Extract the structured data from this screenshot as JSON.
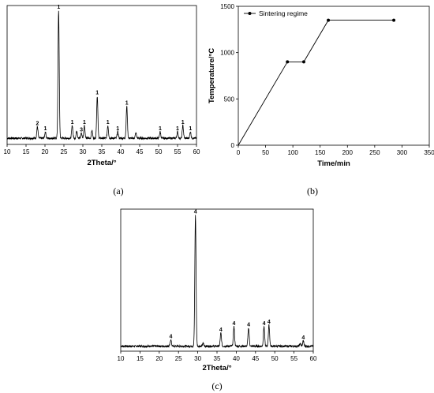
{
  "chart_data": [
    {
      "id": "a",
      "type": "line",
      "caption": "(a)",
      "xlabel": "2Theta/°",
      "ylabel": "",
      "xlim": [
        10,
        60
      ],
      "xticks": [
        10,
        15,
        20,
        25,
        30,
        35,
        40,
        45,
        50,
        55,
        60
      ],
      "yticks": [],
      "grid": false,
      "ymax": 100,
      "baseline": 3,
      "peaks": [
        {
          "x": 18.0,
          "h": 9,
          "label": "2"
        },
        {
          "x": 20.1,
          "h": 5,
          "label": "1"
        },
        {
          "x": 23.6,
          "h": 100,
          "label": "1"
        },
        {
          "x": 27.2,
          "h": 10,
          "label": "1"
        },
        {
          "x": 28.4,
          "h": 6,
          "label": ""
        },
        {
          "x": 29.6,
          "h": 4,
          "label": "3"
        },
        {
          "x": 30.4,
          "h": 10,
          "label": "1"
        },
        {
          "x": 32.4,
          "h": 6,
          "label": ""
        },
        {
          "x": 33.8,
          "h": 33,
          "label": "1"
        },
        {
          "x": 36.6,
          "h": 10,
          "label": "1"
        },
        {
          "x": 39.2,
          "h": 5,
          "label": "1"
        },
        {
          "x": 41.6,
          "h": 25,
          "label": "1"
        },
        {
          "x": 44.0,
          "h": 4,
          "label": ""
        },
        {
          "x": 50.4,
          "h": 5,
          "label": "1"
        },
        {
          "x": 55.0,
          "h": 5,
          "label": "1"
        },
        {
          "x": 56.4,
          "h": 10,
          "label": "1"
        },
        {
          "x": 58.4,
          "h": 5,
          "label": "1"
        }
      ]
    },
    {
      "id": "b",
      "type": "line",
      "caption": "(b)",
      "xlabel": "Time/min",
      "ylabel": "Temperature/°C",
      "xlim": [
        0,
        350
      ],
      "ylim": [
        0,
        1500
      ],
      "xticks": [
        0,
        50,
        100,
        150,
        200,
        250,
        300,
        350
      ],
      "yticks": [
        0,
        500,
        1000,
        1500
      ],
      "grid": false,
      "legend": "top-left",
      "series": [
        {
          "name": "Sintering regime",
          "x": [
            0,
            90,
            120,
            165,
            285
          ],
          "y": [
            0,
            900,
            900,
            1350,
            1350
          ]
        }
      ]
    },
    {
      "id": "c",
      "type": "line",
      "caption": "(c)",
      "xlabel": "2Theta/°",
      "ylabel": "",
      "xlim": [
        10,
        60
      ],
      "xticks": [
        10,
        15,
        20,
        25,
        30,
        35,
        40,
        45,
        50,
        55,
        60
      ],
      "yticks": [],
      "grid": false,
      "ymax": 100,
      "baseline": 2,
      "peaks": [
        {
          "x": 23.0,
          "h": 5,
          "label": "4"
        },
        {
          "x": 29.4,
          "h": 100,
          "label": "4"
        },
        {
          "x": 31.4,
          "h": 2,
          "label": ""
        },
        {
          "x": 36.0,
          "h": 10,
          "label": "4"
        },
        {
          "x": 39.4,
          "h": 15,
          "label": "4"
        },
        {
          "x": 43.2,
          "h": 14,
          "label": "4"
        },
        {
          "x": 47.2,
          "h": 15,
          "label": "4"
        },
        {
          "x": 48.5,
          "h": 16,
          "label": "4"
        },
        {
          "x": 56.6,
          "h": 2,
          "label": ""
        },
        {
          "x": 57.4,
          "h": 4,
          "label": "4"
        }
      ]
    }
  ]
}
